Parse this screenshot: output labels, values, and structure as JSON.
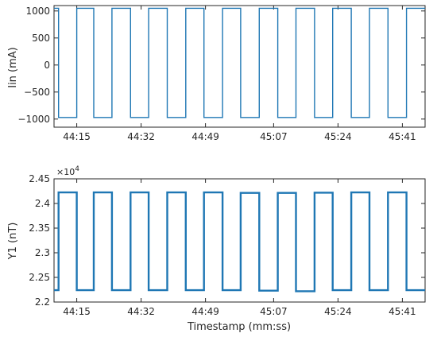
{
  "chart_data": [
    {
      "type": "line",
      "ylabel": "Iin (mA)",
      "xlabel": "",
      "x_tick_labels": [
        "44:15",
        "44:32",
        "44:49",
        "45:07",
        "45:24",
        "45:41"
      ],
      "x_tick_seconds": [
        2655,
        2672,
        2689,
        2707,
        2724,
        2741
      ],
      "xlim_seconds": [
        2649,
        2747
      ],
      "yticks": [
        -1000,
        -500,
        0,
        500,
        1000
      ],
      "ylim": [
        -1150,
        1100
      ],
      "color": "#1f77b4",
      "series": [
        {
          "x_seconds": [
            2649,
            2650.2,
            2650.2,
            2655.0,
            2655.0,
            2659.5,
            2659.5,
            2664.3,
            2664.3,
            2669.2,
            2669.2,
            2674.0,
            2674.0,
            2678.9,
            2678.9,
            2683.8,
            2683.8,
            2688.6,
            2688.6,
            2693.5,
            2693.5,
            2698.3,
            2698.3,
            2703.2,
            2703.2,
            2708.1,
            2708.1,
            2712.9,
            2712.9,
            2717.8,
            2717.8,
            2722.6,
            2722.6,
            2727.5,
            2727.5,
            2732.3,
            2732.3,
            2737.2,
            2737.2,
            2742.1,
            2742.1,
            2747
          ],
          "y": [
            1050,
            1050,
            -970,
            -970,
            1050,
            1050,
            -970,
            -970,
            1050,
            1050,
            -970,
            -970,
            1050,
            1050,
            -970,
            -970,
            1050,
            1050,
            -970,
            -970,
            1050,
            1050,
            -970,
            -970,
            1050,
            1050,
            -970,
            -970,
            1050,
            1050,
            -970,
            -970,
            1050,
            1050,
            -970,
            -970,
            1050,
            1050,
            -970,
            -970,
            1050,
            1050
          ]
        }
      ]
    },
    {
      "type": "line",
      "ylabel": "Y1 (nT)",
      "xlabel": "Timestamp (mm:ss)",
      "y_scale_label": "×10",
      "y_scale_exponent": "4",
      "x_tick_labels": [
        "44:15",
        "44:32",
        "44:49",
        "45:07",
        "45:24",
        "45:41"
      ],
      "x_tick_seconds": [
        2655,
        2672,
        2689,
        2707,
        2724,
        2741
      ],
      "xlim_seconds": [
        2649,
        2747
      ],
      "yticks": [
        2.2,
        2.25,
        2.3,
        2.35,
        2.4,
        2.45
      ],
      "ytick_labels": [
        "2.2",
        "2.25",
        "2.3",
        "2.35",
        "2.4",
        "2.45"
      ],
      "ylim": [
        2.2,
        2.45
      ],
      "color": "#1f77b4",
      "series": [
        {
          "x_seconds": [
            2649,
            2650.2,
            2650.2,
            2655.0,
            2655.0,
            2659.5,
            2659.5,
            2664.3,
            2664.3,
            2669.2,
            2669.2,
            2674.0,
            2674.0,
            2678.9,
            2678.9,
            2683.8,
            2683.8,
            2688.6,
            2688.6,
            2693.5,
            2693.5,
            2698.3,
            2698.3,
            2703.2,
            2703.2,
            2708.1,
            2708.1,
            2712.9,
            2712.9,
            2717.8,
            2717.8,
            2722.6,
            2722.6,
            2727.5,
            2727.5,
            2732.3,
            2732.3,
            2737.2,
            2737.2,
            2742.1,
            2742.1,
            2747
          ],
          "y": [
            2.224,
            2.224,
            2.4225,
            2.4225,
            2.224,
            2.224,
            2.4225,
            2.4225,
            2.224,
            2.224,
            2.4225,
            2.4225,
            2.224,
            2.224,
            2.4225,
            2.4225,
            2.224,
            2.224,
            2.4225,
            2.4225,
            2.224,
            2.224,
            2.4215,
            2.4215,
            2.223,
            2.223,
            2.4215,
            2.4215,
            2.222,
            2.222,
            2.422,
            2.422,
            2.224,
            2.224,
            2.4225,
            2.4225,
            2.224,
            2.224,
            2.4225,
            2.4225,
            2.224,
            2.224
          ]
        }
      ]
    }
  ]
}
